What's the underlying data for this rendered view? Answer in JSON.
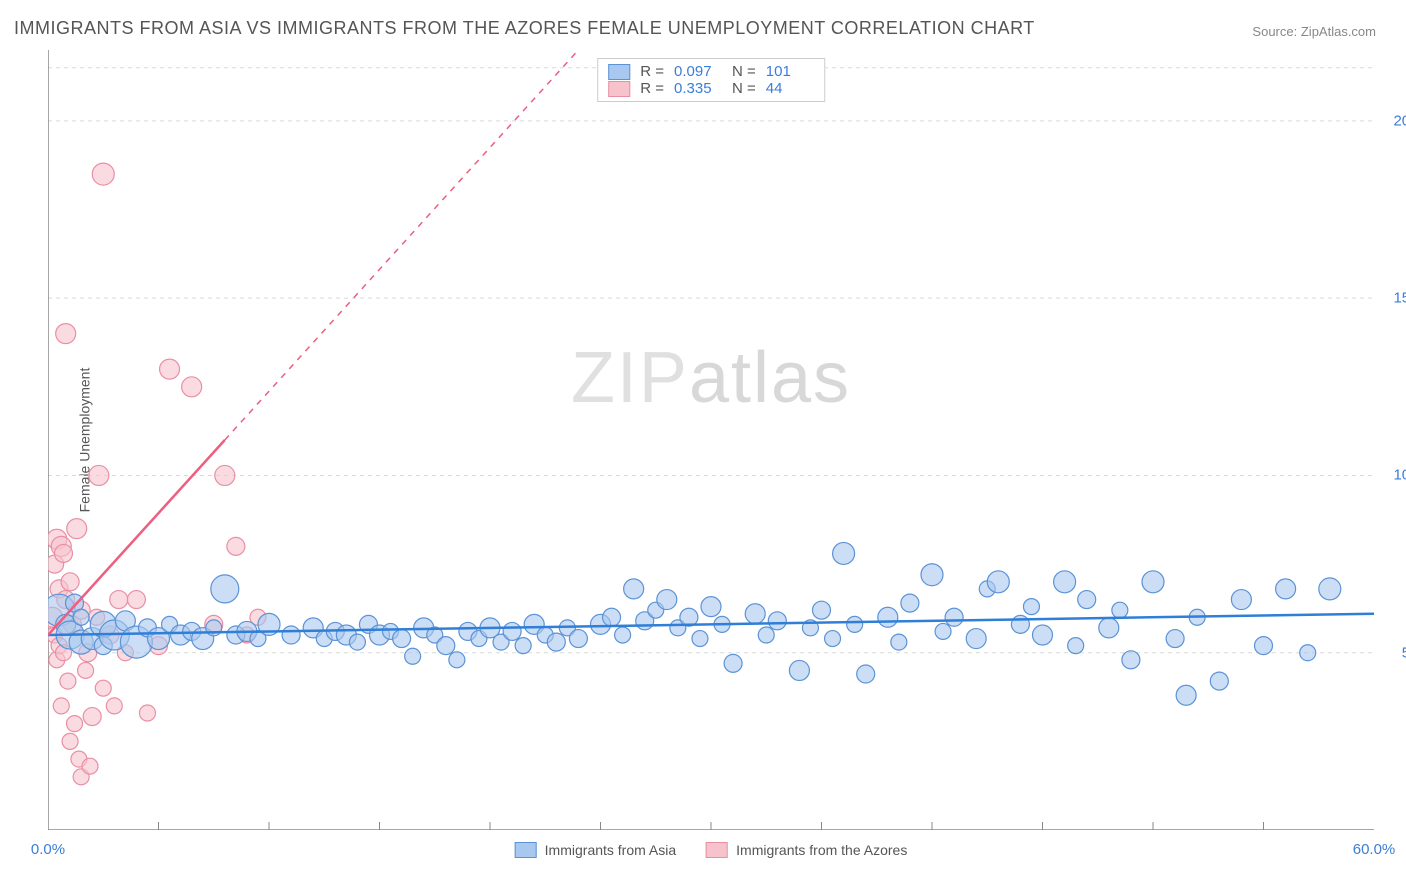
{
  "title": "IMMIGRANTS FROM ASIA VS IMMIGRANTS FROM THE AZORES FEMALE UNEMPLOYMENT CORRELATION CHART",
  "source_label": "Source:",
  "source_value": "ZipAtlas.com",
  "ylabel": "Female Unemployment",
  "watermark_a": "ZIP",
  "watermark_b": "atlas",
  "colors": {
    "blue_fill": "#a9c8ef",
    "blue_stroke": "#5b93d6",
    "pink_fill": "#f6c3cd",
    "pink_stroke": "#e98fa3",
    "blue_line": "#2f7ed8",
    "pink_line": "#ed5e80",
    "grid": "#d9d9d9",
    "axis": "#888888",
    "tick_text": "#3b7dd8",
    "background": "#ffffff"
  },
  "chart": {
    "type": "scatter",
    "xlim": [
      0,
      60
    ],
    "ylim": [
      0,
      22
    ],
    "x_ticks_minor": [
      5,
      10,
      15,
      20,
      25,
      30,
      35,
      40,
      45,
      50,
      55
    ],
    "x_labels": [
      {
        "x": 0,
        "label": "0.0%"
      },
      {
        "x": 60,
        "label": "60.0%"
      }
    ],
    "y_gridlines": [
      5,
      10,
      15,
      20,
      21.5
    ],
    "y_labels": [
      {
        "y": 5,
        "label": "5.0%"
      },
      {
        "y": 10,
        "label": "10.0%"
      },
      {
        "y": 15,
        "label": "15.0%"
      },
      {
        "y": 20,
        "label": "20.0%"
      }
    ],
    "series_blue": {
      "name": "Immigrants from Asia",
      "R": "0.097",
      "N": "101",
      "regression": {
        "x1": 0,
        "y1": 5.5,
        "x2": 60,
        "y2": 6.1
      },
      "points": [
        {
          "x": 0.5,
          "y": 6.2,
          "r": 16
        },
        {
          "x": 0.8,
          "y": 5.8,
          "r": 10
        },
        {
          "x": 1,
          "y": 5.5,
          "r": 14
        },
        {
          "x": 1.2,
          "y": 6.4,
          "r": 9
        },
        {
          "x": 1.5,
          "y": 5.3,
          "r": 12
        },
        {
          "x": 1.5,
          "y": 6.0,
          "r": 8
        },
        {
          "x": 2,
          "y": 5.4,
          "r": 11
        },
        {
          "x": 2.5,
          "y": 5.8,
          "r": 13
        },
        {
          "x": 2.5,
          "y": 5.2,
          "r": 9
        },
        {
          "x": 3,
          "y": 5.5,
          "r": 15
        },
        {
          "x": 3.5,
          "y": 5.9,
          "r": 10
        },
        {
          "x": 4,
          "y": 5.3,
          "r": 16
        },
        {
          "x": 4.5,
          "y": 5.7,
          "r": 9
        },
        {
          "x": 5,
          "y": 5.4,
          "r": 11
        },
        {
          "x": 5.5,
          "y": 5.8,
          "r": 8
        },
        {
          "x": 6,
          "y": 5.5,
          "r": 10
        },
        {
          "x": 6.5,
          "y": 5.6,
          "r": 9
        },
        {
          "x": 7,
          "y": 5.4,
          "r": 11
        },
        {
          "x": 7.5,
          "y": 5.7,
          "r": 8
        },
        {
          "x": 8,
          "y": 6.8,
          "r": 14
        },
        {
          "x": 8.5,
          "y": 5.5,
          "r": 9
        },
        {
          "x": 9,
          "y": 5.6,
          "r": 10
        },
        {
          "x": 9.5,
          "y": 5.4,
          "r": 8
        },
        {
          "x": 10,
          "y": 5.8,
          "r": 11
        },
        {
          "x": 11,
          "y": 5.5,
          "r": 9
        },
        {
          "x": 12,
          "y": 5.7,
          "r": 10
        },
        {
          "x": 12.5,
          "y": 5.4,
          "r": 8
        },
        {
          "x": 13,
          "y": 5.6,
          "r": 9
        },
        {
          "x": 13.5,
          "y": 5.5,
          "r": 10
        },
        {
          "x": 14,
          "y": 5.3,
          "r": 8
        },
        {
          "x": 14.5,
          "y": 5.8,
          "r": 9
        },
        {
          "x": 15,
          "y": 5.5,
          "r": 10
        },
        {
          "x": 15.5,
          "y": 5.6,
          "r": 8
        },
        {
          "x": 16,
          "y": 5.4,
          "r": 9
        },
        {
          "x": 16.5,
          "y": 4.9,
          "r": 8
        },
        {
          "x": 17,
          "y": 5.7,
          "r": 10
        },
        {
          "x": 17.5,
          "y": 5.5,
          "r": 8
        },
        {
          "x": 18,
          "y": 5.2,
          "r": 9
        },
        {
          "x": 18.5,
          "y": 4.8,
          "r": 8
        },
        {
          "x": 19,
          "y": 5.6,
          "r": 9
        },
        {
          "x": 19.5,
          "y": 5.4,
          "r": 8
        },
        {
          "x": 20,
          "y": 5.7,
          "r": 10
        },
        {
          "x": 20.5,
          "y": 5.3,
          "r": 8
        },
        {
          "x": 21,
          "y": 5.6,
          "r": 9
        },
        {
          "x": 21.5,
          "y": 5.2,
          "r": 8
        },
        {
          "x": 22,
          "y": 5.8,
          "r": 10
        },
        {
          "x": 22.5,
          "y": 5.5,
          "r": 8
        },
        {
          "x": 23,
          "y": 5.3,
          "r": 9
        },
        {
          "x": 23.5,
          "y": 5.7,
          "r": 8
        },
        {
          "x": 24,
          "y": 5.4,
          "r": 9
        },
        {
          "x": 25,
          "y": 5.8,
          "r": 10
        },
        {
          "x": 25.5,
          "y": 6.0,
          "r": 9
        },
        {
          "x": 26,
          "y": 5.5,
          "r": 8
        },
        {
          "x": 26.5,
          "y": 6.8,
          "r": 10
        },
        {
          "x": 27,
          "y": 5.9,
          "r": 9
        },
        {
          "x": 27.5,
          "y": 6.2,
          "r": 8
        },
        {
          "x": 28,
          "y": 6.5,
          "r": 10
        },
        {
          "x": 28.5,
          "y": 5.7,
          "r": 8
        },
        {
          "x": 29,
          "y": 6.0,
          "r": 9
        },
        {
          "x": 29.5,
          "y": 5.4,
          "r": 8
        },
        {
          "x": 30,
          "y": 6.3,
          "r": 10
        },
        {
          "x": 30.5,
          "y": 5.8,
          "r": 8
        },
        {
          "x": 31,
          "y": 4.7,
          "r": 9
        },
        {
          "x": 32,
          "y": 6.1,
          "r": 10
        },
        {
          "x": 32.5,
          "y": 5.5,
          "r": 8
        },
        {
          "x": 33,
          "y": 5.9,
          "r": 9
        },
        {
          "x": 34,
          "y": 4.5,
          "r": 10
        },
        {
          "x": 34.5,
          "y": 5.7,
          "r": 8
        },
        {
          "x": 35,
          "y": 6.2,
          "r": 9
        },
        {
          "x": 35.5,
          "y": 5.4,
          "r": 8
        },
        {
          "x": 36,
          "y": 7.8,
          "r": 11
        },
        {
          "x": 36.5,
          "y": 5.8,
          "r": 8
        },
        {
          "x": 37,
          "y": 4.4,
          "r": 9
        },
        {
          "x": 38,
          "y": 6.0,
          "r": 10
        },
        {
          "x": 38.5,
          "y": 5.3,
          "r": 8
        },
        {
          "x": 39,
          "y": 6.4,
          "r": 9
        },
        {
          "x": 40,
          "y": 7.2,
          "r": 11
        },
        {
          "x": 40.5,
          "y": 5.6,
          "r": 8
        },
        {
          "x": 41,
          "y": 6.0,
          "r": 9
        },
        {
          "x": 42,
          "y": 5.4,
          "r": 10
        },
        {
          "x": 42.5,
          "y": 6.8,
          "r": 8
        },
        {
          "x": 43,
          "y": 7.0,
          "r": 11
        },
        {
          "x": 44,
          "y": 5.8,
          "r": 9
        },
        {
          "x": 44.5,
          "y": 6.3,
          "r": 8
        },
        {
          "x": 45,
          "y": 5.5,
          "r": 10
        },
        {
          "x": 46,
          "y": 7.0,
          "r": 11
        },
        {
          "x": 46.5,
          "y": 5.2,
          "r": 8
        },
        {
          "x": 47,
          "y": 6.5,
          "r": 9
        },
        {
          "x": 48,
          "y": 5.7,
          "r": 10
        },
        {
          "x": 48.5,
          "y": 6.2,
          "r": 8
        },
        {
          "x": 49,
          "y": 4.8,
          "r": 9
        },
        {
          "x": 50,
          "y": 7.0,
          "r": 11
        },
        {
          "x": 51,
          "y": 5.4,
          "r": 9
        },
        {
          "x": 51.5,
          "y": 3.8,
          "r": 10
        },
        {
          "x": 52,
          "y": 6.0,
          "r": 8
        },
        {
          "x": 53,
          "y": 4.2,
          "r": 9
        },
        {
          "x": 54,
          "y": 6.5,
          "r": 10
        },
        {
          "x": 55,
          "y": 5.2,
          "r": 9
        },
        {
          "x": 56,
          "y": 6.8,
          "r": 10
        },
        {
          "x": 57,
          "y": 5.0,
          "r": 8
        },
        {
          "x": 58,
          "y": 6.8,
          "r": 11
        }
      ]
    },
    "series_pink": {
      "name": "Immigrants from the Azores",
      "R": "0.335",
      "N": "44",
      "regression_solid": {
        "x1": 0,
        "y1": 5.5,
        "x2": 8,
        "y2": 11.0
      },
      "regression_dash": {
        "x1": 8,
        "y1": 11.0,
        "x2": 24,
        "y2": 22.0
      },
      "points": [
        {
          "x": 0.2,
          "y": 6.0,
          "r": 10
        },
        {
          "x": 0.3,
          "y": 5.5,
          "r": 8
        },
        {
          "x": 0.3,
          "y": 7.5,
          "r": 9
        },
        {
          "x": 0.4,
          "y": 8.2,
          "r": 10
        },
        {
          "x": 0.4,
          "y": 4.8,
          "r": 8
        },
        {
          "x": 0.5,
          "y": 6.8,
          "r": 9
        },
        {
          "x": 0.5,
          "y": 5.2,
          "r": 8
        },
        {
          "x": 0.6,
          "y": 8.0,
          "r": 10
        },
        {
          "x": 0.6,
          "y": 3.5,
          "r": 8
        },
        {
          "x": 0.7,
          "y": 7.8,
          "r": 9
        },
        {
          "x": 0.7,
          "y": 5.0,
          "r": 8
        },
        {
          "x": 0.8,
          "y": 6.5,
          "r": 9
        },
        {
          "x": 0.8,
          "y": 14.0,
          "r": 10
        },
        {
          "x": 0.9,
          "y": 4.2,
          "r": 8
        },
        {
          "x": 1.0,
          "y": 7.0,
          "r": 9
        },
        {
          "x": 1.0,
          "y": 2.5,
          "r": 8
        },
        {
          "x": 1.1,
          "y": 5.8,
          "r": 9
        },
        {
          "x": 1.2,
          "y": 3.0,
          "r": 8
        },
        {
          "x": 1.3,
          "y": 8.5,
          "r": 10
        },
        {
          "x": 1.4,
          "y": 2.0,
          "r": 8
        },
        {
          "x": 1.5,
          "y": 6.2,
          "r": 9
        },
        {
          "x": 1.5,
          "y": 1.5,
          "r": 8
        },
        {
          "x": 1.7,
          "y": 4.5,
          "r": 8
        },
        {
          "x": 1.8,
          "y": 5.0,
          "r": 9
        },
        {
          "x": 1.9,
          "y": 1.8,
          "r": 8
        },
        {
          "x": 2.0,
          "y": 3.2,
          "r": 9
        },
        {
          "x": 2.2,
          "y": 6.0,
          "r": 8
        },
        {
          "x": 2.3,
          "y": 10.0,
          "r": 10
        },
        {
          "x": 2.5,
          "y": 4.0,
          "r": 8
        },
        {
          "x": 2.5,
          "y": 18.5,
          "r": 11
        },
        {
          "x": 2.8,
          "y": 5.5,
          "r": 9
        },
        {
          "x": 3.0,
          "y": 3.5,
          "r": 8
        },
        {
          "x": 3.2,
          "y": 6.5,
          "r": 9
        },
        {
          "x": 3.5,
          "y": 5.0,
          "r": 8
        },
        {
          "x": 4.0,
          "y": 6.5,
          "r": 9
        },
        {
          "x": 4.5,
          "y": 3.3,
          "r": 8
        },
        {
          "x": 5.0,
          "y": 5.2,
          "r": 9
        },
        {
          "x": 5.5,
          "y": 13.0,
          "r": 10
        },
        {
          "x": 6.5,
          "y": 12.5,
          "r": 10
        },
        {
          "x": 7.5,
          "y": 5.8,
          "r": 9
        },
        {
          "x": 8.0,
          "y": 10.0,
          "r": 10
        },
        {
          "x": 8.5,
          "y": 8.0,
          "r": 9
        },
        {
          "x": 9.0,
          "y": 5.5,
          "r": 8
        },
        {
          "x": 9.5,
          "y": 6.0,
          "r": 8
        }
      ]
    }
  },
  "legend_stat_labels": {
    "R": "R =",
    "N": "N ="
  }
}
